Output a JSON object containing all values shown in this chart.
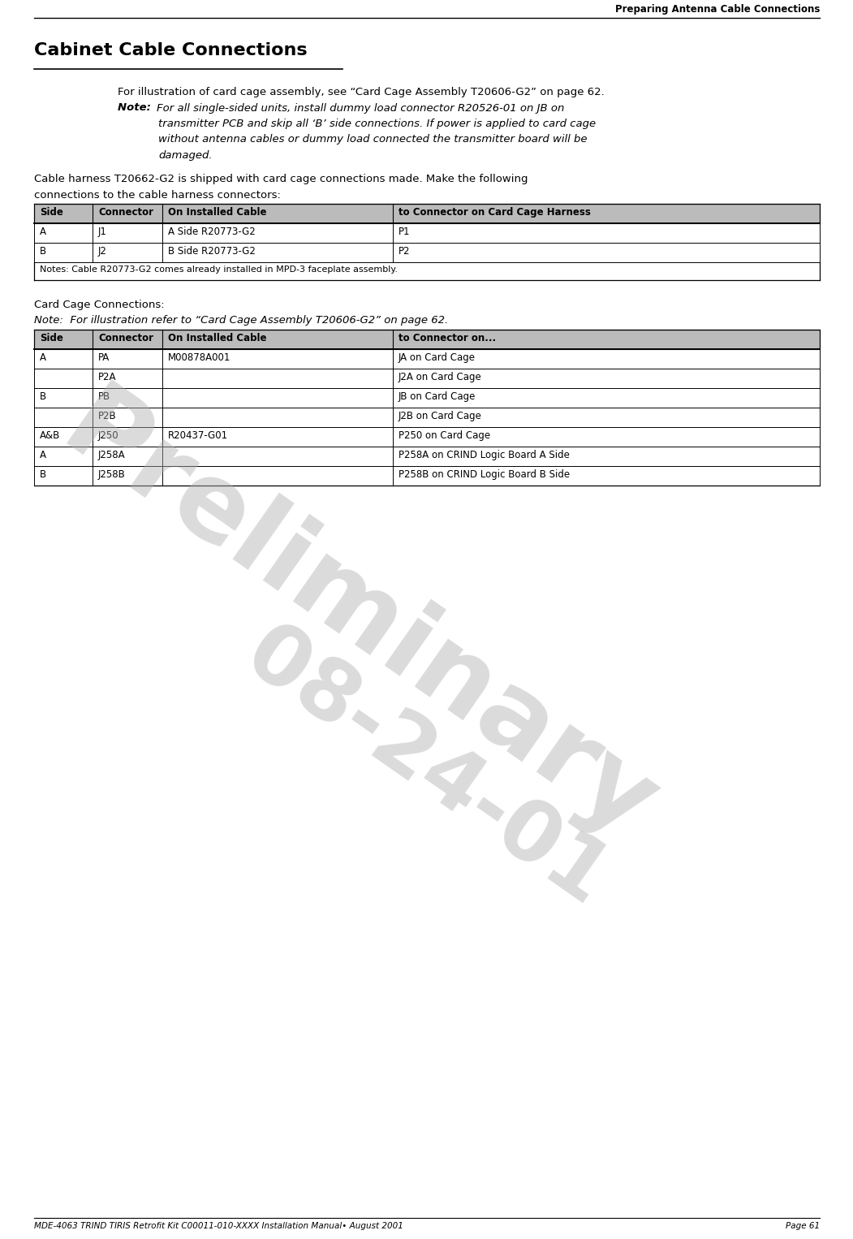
{
  "page_width": 10.51,
  "page_height": 15.26,
  "bg_color": "#ffffff",
  "header_text": "Preparing Antenna Cable Connections",
  "footer_left": "MDE-4063 TRIND TIRIS Retrofit Kit C00011-010-XXXX Installation Manual• August 2001",
  "footer_right": "Page 61",
  "main_title": "Cabinet Cable Connections",
  "para1": "For illustration of card cage assembly, see “Card Cage Assembly T20606-G2” on page 62.",
  "note1_label": "Note:  ",
  "note1_line1": "For all single-sided units, install dummy load connector R20526-01 on JB on",
  "note1_line2": "transmitter PCB and skip all ‘B’ side connections. If power is applied to card cage",
  "note1_line3": "without antenna cables or dummy load connected the transmitter board will be",
  "note1_line4": "damaged.",
  "para2_line1": "Cable harness T20662-G2 is shipped with card cage connections made. Make the following",
  "para2_line2": "connections to the cable harness connectors:",
  "table1_headers": [
    "Side",
    "Connector",
    "On Installed Cable",
    "to Connector on Card Cage Harness"
  ],
  "table1_rows": [
    [
      "A",
      "J1",
      "A Side R20773-G2",
      "P1"
    ],
    [
      "B",
      "J2",
      "B Side R20773-G2",
      "P2"
    ]
  ],
  "table1_note": "Notes: Cable R20773-G2 comes already installed in MPD-3 faceplate assembly.",
  "section2_title": "Card Cage Connections:",
  "section2_note": "Note:  For illustration refer to “Card Cage Assembly T20606-G2” on page 62.",
  "table2_headers": [
    "Side",
    "Connector",
    "On Installed Cable",
    "to Connector on..."
  ],
  "table2_rows": [
    [
      "A",
      "PA",
      "M00878A001",
      "JA on Card Cage"
    ],
    [
      "",
      "P2A",
      "",
      "J2A on Card Cage"
    ],
    [
      "B",
      "PB",
      "",
      "JB on Card Cage"
    ],
    [
      "",
      "P2B",
      "",
      "J2B on Card Cage"
    ],
    [
      "A&B",
      "J250",
      "R20437-G01",
      "P250 on Card Cage"
    ],
    [
      "A",
      "J258A",
      "",
      "P258A on CRIND Logic Board A Side"
    ],
    [
      "B",
      "J258B",
      "",
      "P258B on CRIND Logic Board B Side"
    ]
  ],
  "watermark_line1": "Preliminary",
  "watermark_line2": "08-24-01",
  "header_font_size": 8.5,
  "footer_font_size": 7.5,
  "main_title_font_size": 16,
  "body_font_size": 9.5,
  "table_font_size": 8.5,
  "note_font_size": 9.5,
  "section2_font_size": 9.5,
  "table_header_color": "#bbbbbb"
}
